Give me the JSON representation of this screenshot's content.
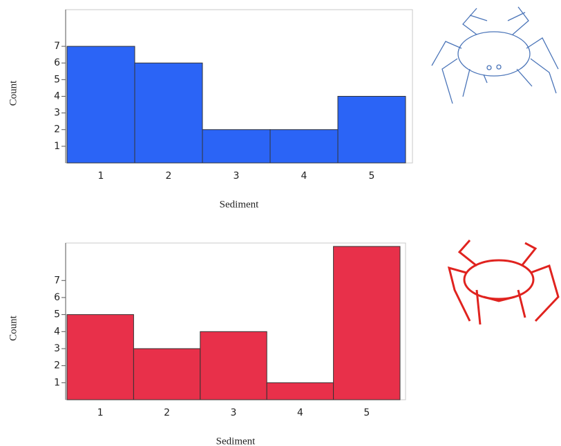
{
  "chart_data": [
    {
      "type": "bar",
      "x_label": "Sediment",
      "y_label": "Count",
      "categories": [
        "1",
        "2",
        "3",
        "4",
        "5"
      ],
      "values": [
        7,
        6,
        2,
        2,
        4
      ],
      "color": "#2b64f6",
      "ylim": [
        0,
        9.2
      ],
      "yticks": [
        1,
        2,
        3,
        4,
        5,
        6,
        7
      ]
    },
    {
      "type": "bar",
      "x_label": "Sediment",
      "y_label": "Count",
      "categories": [
        "1",
        "2",
        "3",
        "4",
        "5"
      ],
      "values": [
        5,
        3,
        4,
        1,
        9
      ],
      "color": "#e8304a",
      "ylim": [
        0,
        9.2
      ],
      "yticks": [
        1,
        2,
        3,
        4,
        5,
        6,
        7
      ]
    }
  ]
}
